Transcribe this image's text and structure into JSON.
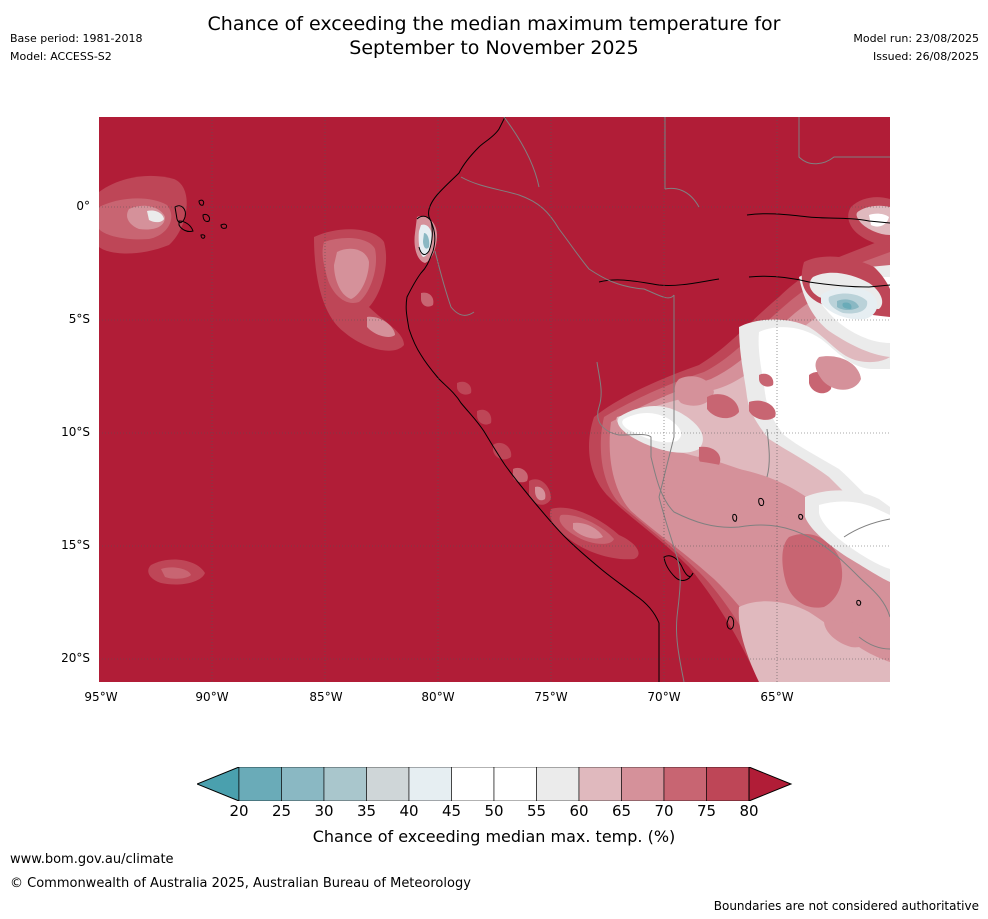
{
  "header": {
    "title_line1": "Chance of exceeding the median maximum temperature for",
    "title_line2": "September to November 2025",
    "base_period": "Base period: 1981-2018",
    "model": "Model: ACCESS-S2",
    "model_run": "Model run: 23/08/2025",
    "issued": "Issued: 26/08/2025"
  },
  "map": {
    "lat_labels": [
      "0°",
      "5°S",
      "10°S",
      "15°S",
      "20°S"
    ],
    "lon_labels": [
      "95°W",
      "90°W",
      "85°W",
      "80°W",
      "75°W",
      "70°W",
      "65°W"
    ],
    "dominant_category": "80+",
    "colors": {
      "gt80": "#b11d37",
      "p75": "#be4657",
      "p70": "#c86572",
      "p65": "#d5919a",
      "p60": "#e0b9be",
      "p55": "#ebebeb",
      "p50": "#ffffff",
      "p45": "#e6eef2",
      "p40": "#bad2d9",
      "p35": "#8ab8c3",
      "p25": "#6aabb8",
      "coast": "#000000",
      "border": "#808080",
      "grid": "#555555"
    }
  },
  "colorbar": {
    "ticks": [
      "20",
      "25",
      "30",
      "35",
      "40",
      "45",
      "50",
      "55",
      "60",
      "65",
      "70",
      "75",
      "80"
    ],
    "colors": [
      "#6aabb8",
      "#8ab8c3",
      "#a9c6cc",
      "#cfd6d8",
      "#e6eef2",
      "#ffffff",
      "#ffffff",
      "#ebebeb",
      "#e0b9be",
      "#d5919a",
      "#c86572",
      "#be4657"
    ],
    "low_color": "#4aa0ae",
    "high_color": "#b11d37",
    "title": "Chance of exceeding median max. temp. (%)"
  },
  "footer": {
    "url": "www.bom.gov.au/climate",
    "copyright": "© Commonwealth of Australia 2025, Australian Bureau of Meteorology",
    "disclaimer": "Boundaries are not considered authoritative"
  }
}
